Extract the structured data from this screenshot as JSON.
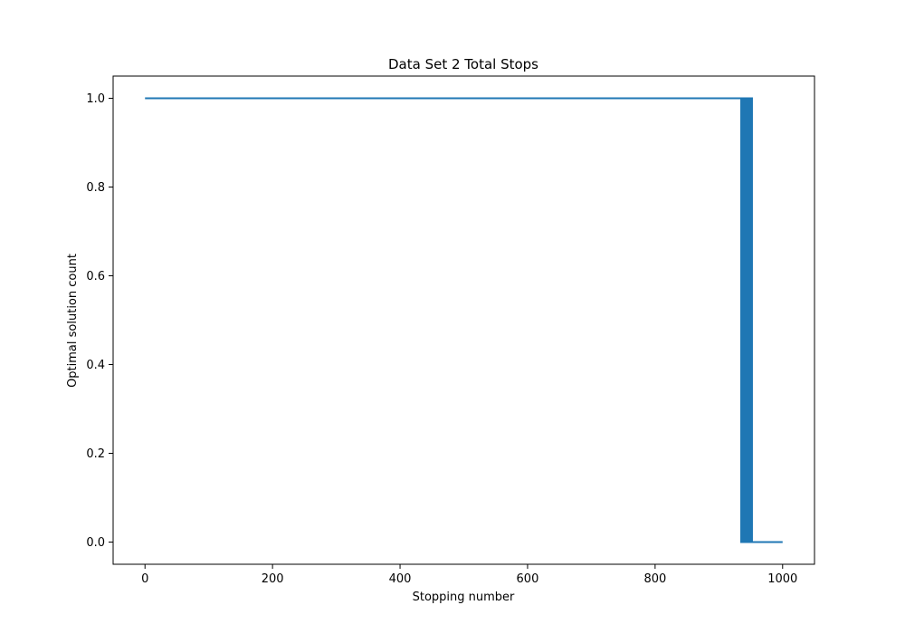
{
  "chart_data": {
    "type": "line",
    "title": "Data Set 2 Total Stops",
    "xlabel": "Stopping number",
    "ylabel": "Optimal solution count",
    "xlim": [
      -50,
      1050
    ],
    "ylim": [
      -0.05,
      1.05
    ],
    "x_ticks": [
      "0",
      "200",
      "400",
      "600",
      "800",
      "1000"
    ],
    "y_ticks": [
      "0.0",
      "0.2",
      "0.4",
      "0.6",
      "0.8",
      "1.0"
    ],
    "grid": false,
    "series": [
      {
        "color": "#1f77b4",
        "points": [
          [
            0,
            1
          ],
          [
            935,
            1
          ],
          [
            935,
            0
          ],
          [
            937,
            0
          ],
          [
            937,
            1
          ],
          [
            939,
            1
          ],
          [
            939,
            0
          ],
          [
            941,
            0
          ],
          [
            941,
            1
          ],
          [
            943,
            1
          ],
          [
            943,
            0
          ],
          [
            945,
            0
          ],
          [
            945,
            1
          ],
          [
            946,
            1
          ],
          [
            946,
            0
          ],
          [
            948,
            0
          ],
          [
            948,
            1
          ],
          [
            950,
            1
          ],
          [
            950,
            0
          ],
          [
            951,
            0
          ],
          [
            951,
            1
          ],
          [
            952,
            1
          ],
          [
            952,
            0
          ],
          [
            1000,
            0
          ]
        ]
      }
    ]
  }
}
